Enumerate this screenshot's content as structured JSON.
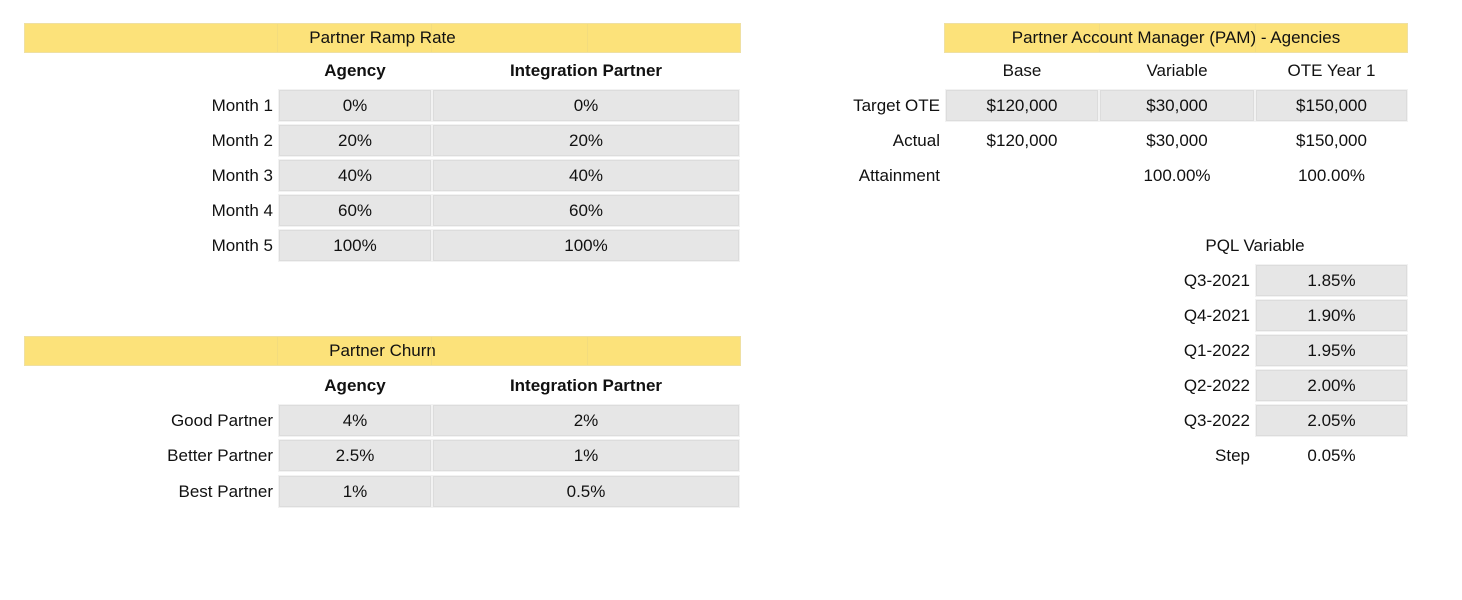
{
  "ramp": {
    "title": "Partner Ramp Rate",
    "col_agency": "Agency",
    "col_integration": "Integration Partner",
    "rows": [
      {
        "label": "Month 1",
        "agency": "0%",
        "integration": "0%"
      },
      {
        "label": "Month 2",
        "agency": "20%",
        "integration": "20%"
      },
      {
        "label": "Month 3",
        "agency": "40%",
        "integration": "40%"
      },
      {
        "label": "Month 4",
        "agency": "60%",
        "integration": "60%"
      },
      {
        "label": "Month 5",
        "agency": "100%",
        "integration": "100%"
      }
    ]
  },
  "churn": {
    "title": "Partner Churn",
    "col_agency": "Agency",
    "col_integration": "Integration Partner",
    "rows": [
      {
        "label": "Good Partner",
        "agency": "4%",
        "integration": "2%"
      },
      {
        "label": "Better Partner",
        "agency": "2.5%",
        "integration": "1%"
      },
      {
        "label": "Best Partner",
        "agency": "1%",
        "integration": "0.5%"
      }
    ]
  },
  "pam": {
    "title": "Partner Account Manager (PAM) - Agencies",
    "col_base": "Base",
    "col_variable": "Variable",
    "col_ote": "OTE Year 1",
    "rows": [
      {
        "label": "Target OTE",
        "base": "$120,000",
        "variable": "$30,000",
        "ote": "$150,000"
      },
      {
        "label": "Actual",
        "base": "$120,000",
        "variable": "$30,000",
        "ote": "$150,000"
      },
      {
        "label": "Attainment",
        "base": "",
        "variable": "100.00%",
        "ote": "100.00%"
      }
    ]
  },
  "pql": {
    "title": "PQL Variable",
    "rows": [
      {
        "label": "Q3-2021",
        "value": "1.85%"
      },
      {
        "label": "Q4-2021",
        "value": "1.90%"
      },
      {
        "label": "Q1-2022",
        "value": "1.95%"
      },
      {
        "label": "Q2-2022",
        "value": "2.00%"
      },
      {
        "label": "Q3-2022",
        "value": "2.05%"
      }
    ],
    "step_label": "Step",
    "step_value": "0.05%"
  },
  "colors": {
    "header_fill": "#fce27a",
    "input_fill": "#e6e6e6"
  }
}
